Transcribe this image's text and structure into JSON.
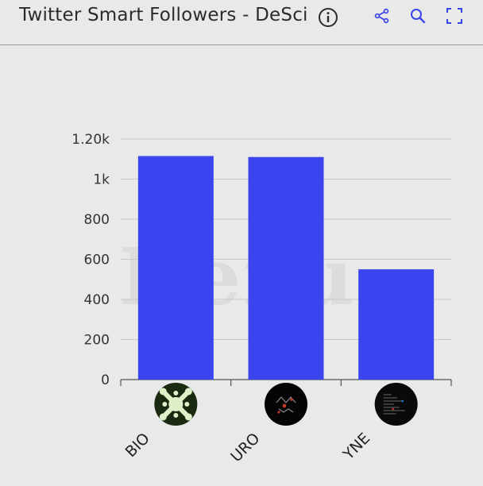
{
  "header": {
    "title": "Twitter Smart Followers - DeSci",
    "info_icon": "info-icon",
    "tools": [
      "share-icon",
      "zoom-icon",
      "fullscreen-icon"
    ],
    "tool_color": "#3a45e8"
  },
  "watermark": "Dexu",
  "chart_data": {
    "type": "bar",
    "categories": [
      "BIO",
      "URO",
      "YNE"
    ],
    "values": [
      1115,
      1110,
      550
    ],
    "yticks": [
      "0",
      "200",
      "400",
      "600",
      "800",
      "1k",
      "1.20k"
    ],
    "ylim": [
      0,
      1200
    ],
    "bar_color": "#3a45f0",
    "grid": true,
    "category_icons": [
      "bio-logo-icon",
      "uro-logo-icon",
      "yne-logo-icon"
    ]
  }
}
